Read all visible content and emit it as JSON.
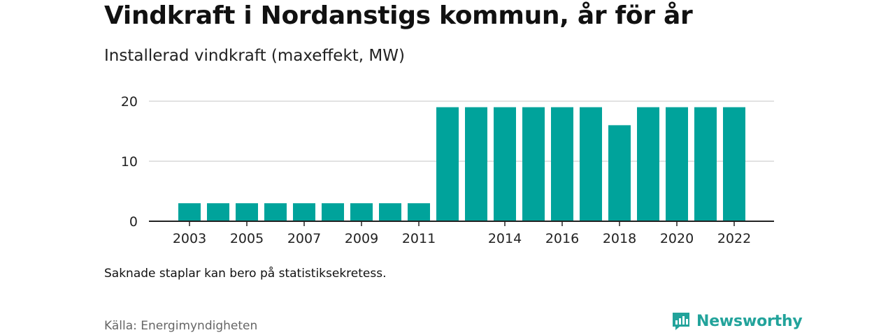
{
  "chart_data": {
    "type": "bar",
    "title": "Vindkraft i Nordanstigs kommun, år för år",
    "subtitle": "Installerad vindkraft (maxeffekt, MW)",
    "categories": [
      "2003",
      "2004",
      "2005",
      "2006",
      "2007",
      "2008",
      "2009",
      "2010",
      "2011",
      "2012",
      "2013",
      "2014",
      "2015",
      "2016",
      "2017",
      "2018",
      "2019",
      "2020",
      "2021",
      "2022"
    ],
    "values": [
      3,
      3,
      3,
      3,
      3,
      3,
      3,
      3,
      3,
      19,
      19,
      19,
      19,
      19,
      19,
      16,
      19,
      19,
      19,
      19
    ],
    "x_tick_labels": [
      "2003",
      "2005",
      "2007",
      "2009",
      "2011",
      "2014",
      "2016",
      "2018",
      "2020",
      "2022"
    ],
    "y_ticks": [
      0,
      10,
      20
    ],
    "ylim": [
      0,
      20
    ],
    "xlabel": "",
    "ylabel": "",
    "grid": true,
    "bar_color": "#00a39b"
  },
  "note": "Saknade staplar kan bero på statistiksekretess.",
  "source": "Källa: Energimyndigheten",
  "brand": {
    "name": "Newsworthy",
    "icon": "newsworthy-logo-icon",
    "color": "#22a39b"
  }
}
